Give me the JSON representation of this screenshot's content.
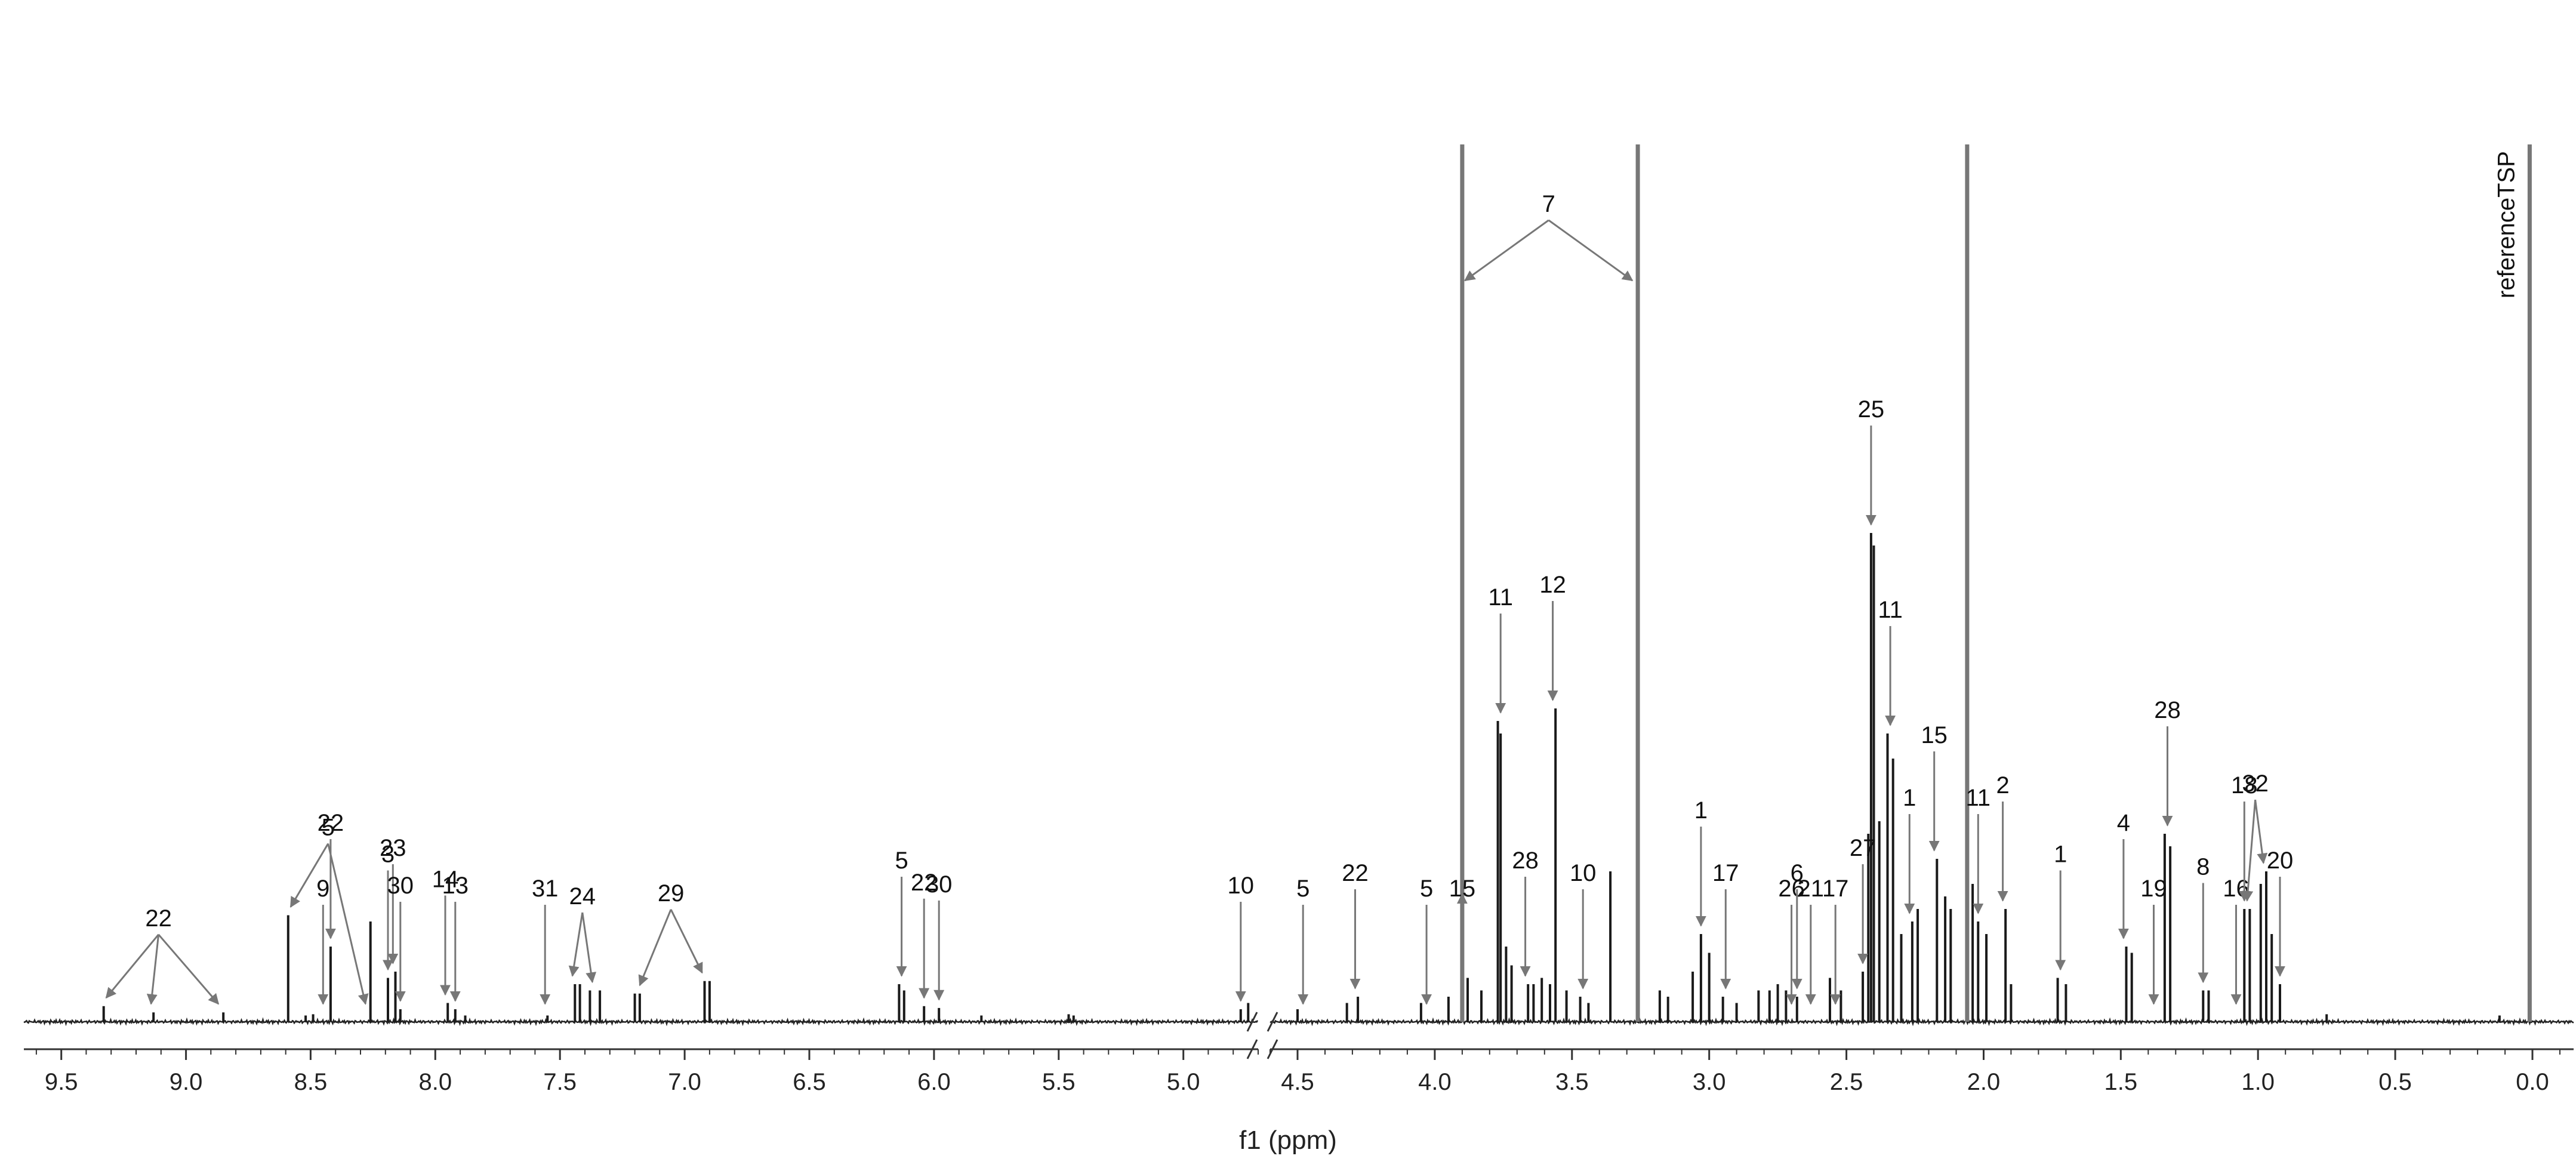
{
  "chart_data": {
    "type": "line",
    "title": "",
    "xlabel": "f1 (ppm)",
    "ylabel": "",
    "x_reversed": true,
    "axis_break": [
      4.6,
      4.7
    ],
    "xlim_left": [
      9.65,
      4.7
    ],
    "xlim_right": [
      4.6,
      -0.15
    ],
    "x_ticks": [
      {
        "value": 9.5,
        "label": "9.5"
      },
      {
        "value": 9.0,
        "label": "9.0"
      },
      {
        "value": 8.5,
        "label": "8.5"
      },
      {
        "value": 8.0,
        "label": "8.0"
      },
      {
        "value": 7.5,
        "label": "7.5"
      },
      {
        "value": 7.0,
        "label": "7.0"
      },
      {
        "value": 6.5,
        "label": "6.5"
      },
      {
        "value": 6.0,
        "label": "6.0"
      },
      {
        "value": 5.5,
        "label": "5.5"
      },
      {
        "value": 5.0,
        "label": "5.0"
      },
      {
        "value": 4.5,
        "label": "4.5"
      },
      {
        "value": 4.0,
        "label": "4.0"
      },
      {
        "value": 3.5,
        "label": "3.5"
      },
      {
        "value": 3.0,
        "label": "3.0"
      },
      {
        "value": 2.5,
        "label": "2.5"
      },
      {
        "value": 2.0,
        "label": "2.0"
      },
      {
        "value": 1.5,
        "label": "1.5"
      },
      {
        "value": 1.0,
        "label": "1.0"
      },
      {
        "value": 0.5,
        "label": "0.5"
      },
      {
        "value": 0.0,
        "label": "0.0"
      }
    ],
    "peaks": [
      [
        9.33,
        2.5
      ],
      [
        9.13,
        1.5
      ],
      [
        8.85,
        1.5
      ],
      [
        8.59,
        17
      ],
      [
        8.52,
        1
      ],
      [
        8.49,
        1.2
      ],
      [
        8.42,
        12
      ],
      [
        8.26,
        16
      ],
      [
        8.19,
        7
      ],
      [
        8.16,
        8
      ],
      [
        8.14,
        2
      ],
      [
        7.95,
        3
      ],
      [
        7.92,
        2
      ],
      [
        7.88,
        1
      ],
      [
        7.55,
        1
      ],
      [
        7.44,
        6
      ],
      [
        7.42,
        6
      ],
      [
        7.38,
        5
      ],
      [
        7.34,
        5
      ],
      [
        7.2,
        4.5
      ],
      [
        7.18,
        4.5
      ],
      [
        6.92,
        6.5
      ],
      [
        6.9,
        6.5
      ],
      [
        6.14,
        6
      ],
      [
        6.12,
        5
      ],
      [
        6.04,
        2.5
      ],
      [
        5.98,
        2.2
      ],
      [
        5.81,
        1
      ],
      [
        5.46,
        1.2
      ],
      [
        5.44,
        1
      ],
      [
        4.77,
        2
      ],
      [
        4.74,
        3
      ],
      [
        4.5,
        2
      ],
      [
        4.32,
        3
      ],
      [
        4.28,
        4
      ],
      [
        4.05,
        3
      ],
      [
        3.95,
        4
      ],
      [
        3.9,
        140
      ],
      [
        3.88,
        7
      ],
      [
        3.83,
        5
      ],
      [
        3.77,
        48
      ],
      [
        3.76,
        46
      ],
      [
        3.74,
        12
      ],
      [
        3.72,
        9
      ],
      [
        3.66,
        6
      ],
      [
        3.64,
        6
      ],
      [
        3.61,
        7
      ],
      [
        3.58,
        6
      ],
      [
        3.56,
        50
      ],
      [
        3.52,
        5
      ],
      [
        3.47,
        4
      ],
      [
        3.44,
        3
      ],
      [
        3.36,
        24
      ],
      [
        3.26,
        140
      ],
      [
        3.18,
        5
      ],
      [
        3.15,
        4
      ],
      [
        3.06,
        8
      ],
      [
        3.03,
        14
      ],
      [
        3.0,
        11
      ],
      [
        2.95,
        4
      ],
      [
        2.9,
        3
      ],
      [
        2.82,
        5
      ],
      [
        2.78,
        5
      ],
      [
        2.75,
        6
      ],
      [
        2.72,
        5
      ],
      [
        2.68,
        4
      ],
      [
        2.56,
        7
      ],
      [
        2.52,
        5
      ],
      [
        2.44,
        8
      ],
      [
        2.42,
        30
      ],
      [
        2.41,
        78
      ],
      [
        2.4,
        76
      ],
      [
        2.38,
        32
      ],
      [
        2.35,
        46
      ],
      [
        2.33,
        42
      ],
      [
        2.3,
        14
      ],
      [
        2.26,
        16
      ],
      [
        2.24,
        18
      ],
      [
        2.17,
        26
      ],
      [
        2.14,
        20
      ],
      [
        2.12,
        18
      ],
      [
        2.06,
        140
      ],
      [
        2.04,
        22
      ],
      [
        2.02,
        16
      ],
      [
        1.99,
        14
      ],
      [
        1.92,
        18
      ],
      [
        1.9,
        6
      ],
      [
        1.73,
        7
      ],
      [
        1.7,
        6
      ],
      [
        1.48,
        12
      ],
      [
        1.46,
        11
      ],
      [
        1.34,
        30
      ],
      [
        1.32,
        28
      ],
      [
        1.2,
        5
      ],
      [
        1.18,
        5
      ],
      [
        1.05,
        18
      ],
      [
        1.03,
        18
      ],
      [
        0.99,
        22
      ],
      [
        0.97,
        24
      ],
      [
        0.95,
        14
      ],
      [
        0.92,
        6
      ],
      [
        0.75,
        1.2
      ],
      [
        0.12,
        1
      ],
      [
        0.01,
        140
      ]
    ],
    "annotations": [
      {
        "label": "22",
        "points": [
          9.32,
          9.14,
          8.87
        ]
      },
      {
        "label": "9",
        "points": [
          8.45
        ]
      },
      {
        "label": "5",
        "points": [
          8.58,
          8.28
        ]
      },
      {
        "label": "22",
        "points": [
          8.42
        ]
      },
      {
        "label": "3",
        "points": [
          8.19
        ]
      },
      {
        "label": "23",
        "points": [
          8.17
        ]
      },
      {
        "label": "30",
        "points": [
          8.14
        ]
      },
      {
        "label": "14",
        "points": [
          7.96
        ]
      },
      {
        "label": "13",
        "points": [
          7.92
        ]
      },
      {
        "label": "31",
        "points": [
          7.56
        ]
      },
      {
        "label": "24",
        "points": [
          7.45,
          7.37
        ]
      },
      {
        "label": "29",
        "points": [
          7.18,
          6.93
        ]
      },
      {
        "label": "5",
        "points": [
          6.13
        ]
      },
      {
        "label": "22",
        "points": [
          6.04
        ]
      },
      {
        "label": "30",
        "points": [
          5.98
        ]
      },
      {
        "label": "10",
        "points": [
          4.77
        ]
      },
      {
        "label": "5",
        "points": [
          4.48
        ]
      },
      {
        "label": "22",
        "points": [
          4.29
        ]
      },
      {
        "label": "5",
        "points": [
          4.03
        ]
      },
      {
        "label": "15",
        "points": [
          3.9
        ]
      },
      {
        "label": "7",
        "points": [
          3.89,
          3.28
        ]
      },
      {
        "label": "11",
        "points": [
          3.76
        ]
      },
      {
        "label": "28",
        "points": [
          3.67
        ]
      },
      {
        "label": "12",
        "points": [
          3.57
        ]
      },
      {
        "label": "10",
        "points": [
          3.46
        ]
      },
      {
        "label": "1",
        "points": [
          3.03
        ]
      },
      {
        "label": "17",
        "points": [
          2.94
        ]
      },
      {
        "label": "26",
        "points": [
          2.7
        ]
      },
      {
        "label": "6",
        "points": [
          2.68
        ]
      },
      {
        "label": "21",
        "points": [
          2.63
        ]
      },
      {
        "label": "17",
        "points": [
          2.54
        ]
      },
      {
        "label": "27",
        "points": [
          2.44
        ]
      },
      {
        "label": "25",
        "points": [
          2.41
        ]
      },
      {
        "label": "11",
        "points": [
          2.34
        ]
      },
      {
        "label": "1",
        "points": [
          2.27
        ]
      },
      {
        "label": "15",
        "points": [
          2.18
        ]
      },
      {
        "label": "11",
        "points": [
          2.02
        ]
      },
      {
        "label": "2",
        "points": [
          1.93
        ]
      },
      {
        "label": "1",
        "points": [
          1.72
        ]
      },
      {
        "label": "4",
        "points": [
          1.49
        ]
      },
      {
        "label": "19",
        "points": [
          1.38
        ]
      },
      {
        "label": "28",
        "points": [
          1.33
        ]
      },
      {
        "label": "8",
        "points": [
          1.2
        ]
      },
      {
        "label": "16",
        "points": [
          1.08
        ]
      },
      {
        "label": "18",
        "points": [
          1.05
        ]
      },
      {
        "label": "32",
        "points": [
          1.04,
          0.98
        ]
      },
      {
        "label": "20",
        "points": [
          0.92
        ]
      },
      {
        "label": "referenceTSP",
        "points": [
          0.01
        ],
        "rotated": true
      }
    ],
    "grid": false,
    "legend": "none"
  }
}
